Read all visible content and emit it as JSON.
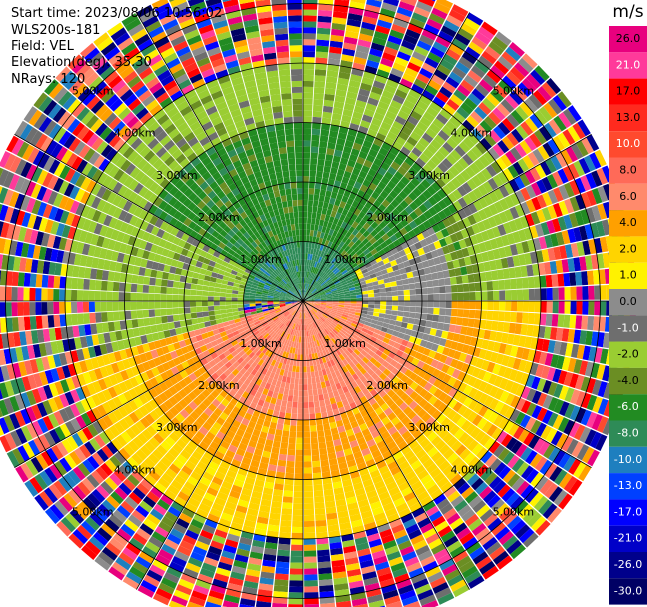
{
  "header": {
    "start_time": "Start time: 2023/08/06 10:56:02",
    "station": "WLS200s-181",
    "field": "Field: VEL",
    "elevation": "Elevation(deg): 35.30",
    "nrays": "NRays: 120"
  },
  "colorbar": {
    "unit": "m/s",
    "labels": [
      "26.0",
      "21.0",
      "17.0",
      "13.0",
      "10.0",
      "8.0",
      "6.0",
      "4.0",
      "2.0",
      "1.0",
      "0.0",
      "-1.0",
      "-2.0",
      "-4.0",
      "-6.0",
      "-8.0",
      "-10.0",
      "-13.0",
      "-17.0",
      "-21.0",
      "-26.0",
      "-30.0"
    ],
    "colors": [
      "#e8007e",
      "#ff3a9a",
      "#ff0000",
      "#ff2a1e",
      "#ff4a2e",
      "#ff6a58",
      "#ff8a6c",
      "#ffa000",
      "#ffd400",
      "#fff200",
      "#8c8c8c",
      "#6e6e6e",
      "#9acd32",
      "#6b8e23",
      "#228b22",
      "#2e8b57",
      "#1e7fbf",
      "#0040ff",
      "#0000ff",
      "#0000c8",
      "#00008b",
      "#000064"
    ],
    "text_colors": [
      "#000",
      "#fff",
      "#000",
      "#000",
      "#fff",
      "#000",
      "#000",
      "#000",
      "#000",
      "#000",
      "#000",
      "#fff",
      "#000",
      "#000",
      "#fff",
      "#fff",
      "#fff",
      "#fff",
      "#fff",
      "#fff",
      "#fff",
      "#fff"
    ]
  },
  "chart_data": {
    "type": "heatmap",
    "projection": "polar PPI (plan position indicator)",
    "field": "VEL",
    "rays": 120,
    "range_rings_km": [
      1.0,
      2.0,
      3.0,
      4.0,
      5.0
    ],
    "ring_labels": [
      "1.00km",
      "2.00km",
      "3.00km",
      "4.00km",
      "5.00km"
    ],
    "azimuth_lines_deg": [
      0,
      30,
      60,
      90,
      120,
      150,
      180,
      210,
      240,
      270,
      300,
      330
    ],
    "max_range_km": 5.6,
    "velocity_regions": [
      {
        "range_km": [
          0.0,
          1.0
        ],
        "azimuth_deg": [
          270,
          450
        ],
        "value_mps": -8.0
      },
      {
        "range_km": [
          1.0,
          3.0
        ],
        "azimuth_deg": [
          300,
          420
        ],
        "value_mps": -6.0
      },
      {
        "range_km": [
          1.0,
          3.0
        ],
        "azimuth_deg": [
          420,
          450
        ],
        "value_mps": -4.0
      },
      {
        "range_km": [
          1.0,
          3.5
        ],
        "azimuth_deg": [
          255,
          300
        ],
        "value_mps": -2.0
      },
      {
        "range_km": [
          3.0,
          4.0
        ],
        "azimuth_deg": [
          270,
          450
        ],
        "value_mps": -2.0
      },
      {
        "range_km": [
          0.0,
          2.0
        ],
        "azimuth_deg": [
          90,
          255
        ],
        "value_mps": 6.0
      },
      {
        "range_km": [
          2.0,
          3.0
        ],
        "azimuth_deg": [
          90,
          255
        ],
        "value_mps": 4.0
      },
      {
        "range_km": [
          3.0,
          4.0
        ],
        "azimuth_deg": [
          90,
          255
        ],
        "value_mps": 2.0
      },
      {
        "range_km": [
          1.0,
          2.5
        ],
        "azimuth_deg": [
          60,
          110
        ],
        "value_mps": 0.0
      }
    ],
    "noise_range_km": [
      4.0,
      5.6
    ]
  }
}
